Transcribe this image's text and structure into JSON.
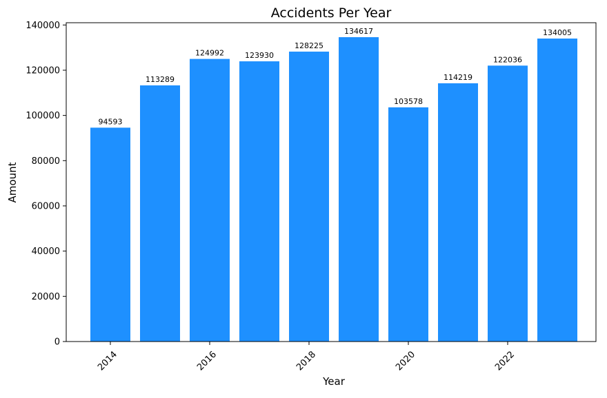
{
  "chart_data": {
    "type": "bar",
    "title": "Accidents Per Year",
    "xlabel": "Year",
    "ylabel": "Amount",
    "categories": [
      "2014",
      "2015",
      "2016",
      "2017",
      "2018",
      "2019",
      "2020",
      "2021",
      "2022",
      "2023"
    ],
    "values": [
      94593,
      113289,
      124992,
      123930,
      128225,
      134617,
      103578,
      114219,
      122036,
      134005
    ],
    "data_labels": [
      "94593",
      "113289",
      "124992",
      "123930",
      "128225",
      "134617",
      "103578",
      "114219",
      "122036",
      "134005"
    ],
    "xticks": [
      "2014",
      "2016",
      "2018",
      "2020",
      "2022"
    ],
    "xtick_values": [
      2014,
      2016,
      2018,
      2020,
      2022
    ],
    "ylim": [
      0,
      141000
    ],
    "yticks": [
      "0",
      "20000",
      "40000",
      "60000",
      "80000",
      "100000",
      "120000",
      "140000"
    ],
    "ytick_values": [
      0,
      20000,
      40000,
      60000,
      80000,
      100000,
      120000,
      140000
    ],
    "grid": false,
    "legend": "none",
    "bar_color": "#1E90FF"
  }
}
